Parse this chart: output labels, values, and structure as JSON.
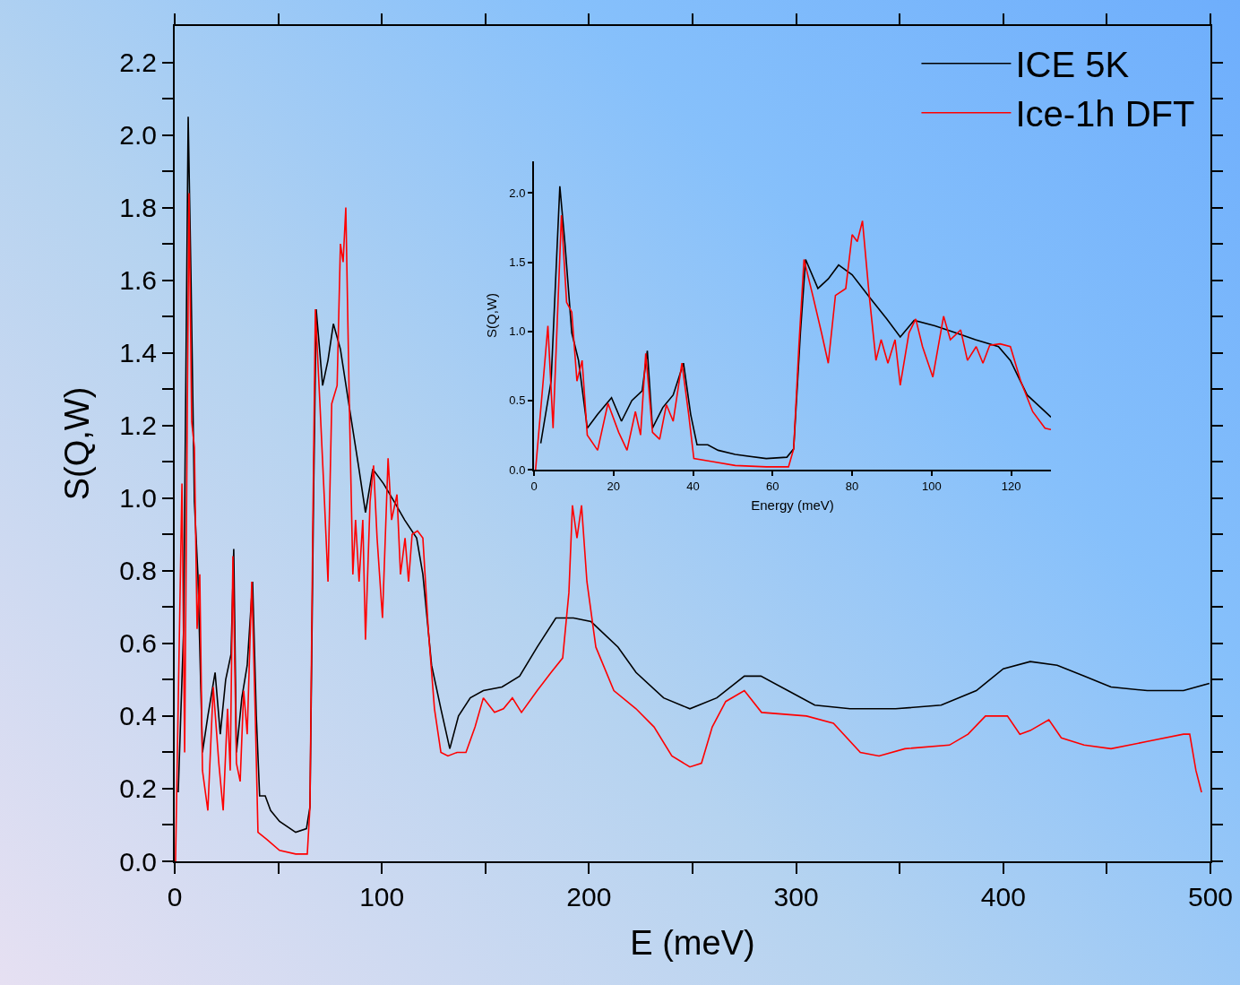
{
  "chart_data": [
    {
      "type": "line",
      "xlabel": "E (meV)",
      "ylabel": "S(Q,W)",
      "xlim": [
        0,
        500
      ],
      "ylim": [
        0,
        2.3
      ],
      "xticks": [
        0,
        {
          "value": 50,
          "label": null
        },
        100,
        {
          "value": 150,
          "label": null
        },
        200,
        {
          "value": 250,
          "label": null
        },
        300,
        {
          "value": 350,
          "label": null
        },
        400,
        {
          "value": 450,
          "label": null
        },
        500
      ],
      "yticks": [
        {
          "value": 0,
          "label": "0.0"
        },
        {
          "value": 0.1,
          "label": null
        },
        0.2,
        {
          "value": 0.3,
          "label": null
        },
        0.4,
        {
          "value": 0.5,
          "label": null
        },
        0.6,
        {
          "value": 0.7,
          "label": null
        },
        0.8,
        {
          "value": 0.9,
          "label": null
        },
        {
          "value": 1,
          "label": "1.0"
        },
        {
          "value": 1.1,
          "label": null
        },
        1.2,
        {
          "value": 1.3,
          "label": null
        },
        1.4,
        {
          "value": 1.5,
          "label": null
        },
        1.6,
        {
          "value": 1.7,
          "label": null
        },
        1.8,
        {
          "value": 1.9,
          "label": null
        },
        {
          "value": 2,
          "label": "2.0"
        },
        {
          "value": 2.1,
          "label": null
        },
        2.2
      ],
      "grid": false,
      "legend": "top right",
      "marker": "none",
      "line_style": "solid",
      "series": [
        {
          "name": "ICE 5K",
          "color": "#000000",
          "x": [
            1.7,
            4.3,
            6.5,
            7.8,
            9.5,
            11.2,
            13.4,
            16,
            19.5,
            22,
            24.6,
            27.2,
            28.5,
            29.8,
            32.4,
            35,
            37.6,
            39.4,
            41,
            43.7,
            46.3,
            50.6,
            58.4,
            63.6,
            65.3,
            67,
            68.3,
            71.4,
            74,
            76.6,
            80,
            84.3,
            88.7,
            92.1,
            95.6,
            100.8,
            106,
            111,
            116.8,
            119.8,
            124,
            128.5,
            132.8,
            137,
            142.7,
            149,
            158,
            166.5,
            175,
            184,
            192.5,
            201,
            214,
            222.7,
            236,
            248.7,
            261.7,
            275,
            283,
            296,
            309,
            326,
            348,
            370,
            387,
            400,
            413,
            426,
            439,
            452,
            469.5,
            487,
            499.5
          ],
          "values": [
            0.19,
            0.64,
            2.05,
            1.63,
            0.99,
            0.79,
            0.3,
            0.4,
            0.52,
            0.35,
            0.5,
            0.57,
            0.86,
            0.3,
            0.45,
            0.54,
            0.77,
            0.4,
            0.18,
            0.18,
            0.14,
            0.11,
            0.08,
            0.09,
            0.15,
            0.99,
            1.52,
            1.31,
            1.38,
            1.48,
            1.41,
            1.25,
            1.09,
            0.96,
            1.08,
            1.04,
            0.99,
            0.94,
            0.89,
            0.79,
            0.54,
            0.42,
            0.31,
            0.4,
            0.45,
            0.47,
            0.48,
            0.51,
            0.59,
            0.67,
            0.67,
            0.66,
            0.59,
            0.52,
            0.45,
            0.42,
            0.45,
            0.51,
            0.51,
            0.47,
            0.43,
            0.42,
            0.42,
            0.43,
            0.47,
            0.53,
            0.55,
            0.54,
            0.51,
            0.48,
            0.47,
            0.47,
            0.49
          ]
        },
        {
          "name": "Ice-1h DFT",
          "color": "#ff0000",
          "x": [
            0.4,
            3.5,
            4.8,
            6.9,
            8.2,
            9.5,
            10.8,
            12.1,
            13.4,
            16,
            18.6,
            21.3,
            23.4,
            25.5,
            26.8,
            28.1,
            29.8,
            31.6,
            33.3,
            35,
            37.2,
            38.9,
            40.2,
            44.5,
            50.6,
            58.4,
            64,
            65.3,
            66.6,
            67.9,
            70.1,
            72.3,
            74,
            75.8,
            78.4,
            80,
            81.3,
            82.6,
            84.3,
            86,
            87.3,
            89,
            90.8,
            92.1,
            94.3,
            96,
            97.7,
            100.3,
            103,
            104.7,
            107.3,
            109,
            111.2,
            112.9,
            114.6,
            117.2,
            119.8,
            122.4,
            125.4,
            128.5,
            131.9,
            136.3,
            140.6,
            145,
            149,
            154.4,
            158.7,
            163,
            167.4,
            175,
            181.7,
            187.3,
            190.3,
            192,
            194.2,
            196.4,
            199,
            203.3,
            212,
            222.7,
            231.4,
            240,
            248.7,
            254.3,
            259.5,
            266,
            275,
            283.3,
            305,
            318,
            331,
            340,
            352.5,
            374,
            383,
            391.4,
            402,
            408,
            413,
            422,
            428,
            439,
            452,
            469.5,
            487,
            490,
            493,
            495.7
          ],
          "values": [
            0,
            1.04,
            0.3,
            1.84,
            1.21,
            1.14,
            0.64,
            0.79,
            0.25,
            0.14,
            0.48,
            0.27,
            0.14,
            0.42,
            0.25,
            0.84,
            0.27,
            0.22,
            0.47,
            0.35,
            0.77,
            0.4,
            0.08,
            0.06,
            0.03,
            0.02,
            0.02,
            0.15,
            0.89,
            1.52,
            1.26,
            0.99,
            0.77,
            1.26,
            1.31,
            1.7,
            1.65,
            1.8,
            1.26,
            0.79,
            0.94,
            0.77,
            0.94,
            0.61,
            0.99,
            1.09,
            0.89,
            0.67,
            1.11,
            0.94,
            1.01,
            0.79,
            0.89,
            0.77,
            0.9,
            0.91,
            0.89,
            0.64,
            0.42,
            0.3,
            0.29,
            0.3,
            0.3,
            0.37,
            0.45,
            0.41,
            0.42,
            0.45,
            0.41,
            0.47,
            0.52,
            0.56,
            0.74,
            0.98,
            0.89,
            0.98,
            0.77,
            0.59,
            0.47,
            0.42,
            0.37,
            0.29,
            0.26,
            0.27,
            0.37,
            0.44,
            0.47,
            0.41,
            0.4,
            0.38,
            0.3,
            0.29,
            0.31,
            0.32,
            0.35,
            0.4,
            0.4,
            0.35,
            0.36,
            0.39,
            0.34,
            0.32,
            0.31,
            0.33,
            0.35,
            0.35,
            0.25,
            0.19
          ]
        }
      ]
    },
    {
      "type": "line",
      "xlabel": "Energy (meV)",
      "ylabel": "S(Q,W)",
      "xlim": [
        0,
        130
      ],
      "ylim": [
        0,
        2.23
      ],
      "xticks": [
        0,
        20,
        40,
        60,
        80,
        100,
        120
      ],
      "yticks": [
        {
          "value": 0,
          "label": "0.0"
        },
        0.5,
        {
          "value": 1,
          "label": "1.0"
        },
        1.5,
        {
          "value": 2,
          "label": "2.0"
        }
      ],
      "grid": false,
      "legend": false,
      "marker": "none",
      "line_style": "solid",
      "series": [
        {
          "color": "#000000",
          "x": [
            1.7,
            4.3,
            6.5,
            7.8,
            9.5,
            11.2,
            13.4,
            16,
            19.5,
            22,
            24.6,
            27.2,
            28.5,
            29.8,
            32.4,
            35,
            37.6,
            39.4,
            41,
            43.7,
            46.3,
            50.6,
            58.4,
            63.6,
            65.3,
            67,
            68.3,
            71.4,
            74,
            76.6,
            80,
            84.3,
            88.7,
            92.1,
            95.6,
            100.8,
            106,
            111,
            116.8,
            119.8,
            124,
            128.5,
            130
          ],
          "values": [
            0.19,
            0.64,
            2.05,
            1.63,
            0.99,
            0.79,
            0.3,
            0.4,
            0.52,
            0.35,
            0.5,
            0.57,
            0.86,
            0.3,
            0.45,
            0.54,
            0.77,
            0.4,
            0.18,
            0.18,
            0.14,
            0.11,
            0.08,
            0.09,
            0.15,
            0.99,
            1.52,
            1.31,
            1.38,
            1.48,
            1.41,
            1.25,
            1.09,
            0.96,
            1.08,
            1.04,
            0.99,
            0.94,
            0.89,
            0.79,
            0.54,
            0.42,
            0.38
          ]
        },
        {
          "color": "#ff0000",
          "x": [
            0.4,
            3.5,
            4.8,
            6.9,
            8.2,
            9.5,
            10.8,
            12.1,
            13.4,
            16,
            18.6,
            21.3,
            23.4,
            25.5,
            26.8,
            28.1,
            29.8,
            31.6,
            33.3,
            35,
            37.2,
            38.9,
            40.2,
            44.5,
            50.6,
            58.4,
            64,
            65.3,
            66.6,
            67.9,
            70.1,
            72.3,
            74,
            75.8,
            78.4,
            80,
            81.3,
            82.6,
            84.3,
            86,
            87.3,
            89,
            90.8,
            92.1,
            94.3,
            96,
            97.7,
            100.3,
            103,
            104.7,
            107.3,
            109,
            111.2,
            112.9,
            114.6,
            117.2,
            119.8,
            122.4,
            125.4,
            128.5,
            130
          ],
          "values": [
            0,
            1.04,
            0.3,
            1.84,
            1.21,
            1.14,
            0.64,
            0.79,
            0.25,
            0.14,
            0.48,
            0.27,
            0.14,
            0.42,
            0.25,
            0.84,
            0.27,
            0.22,
            0.47,
            0.35,
            0.77,
            0.4,
            0.08,
            0.06,
            0.03,
            0.02,
            0.02,
            0.15,
            0.89,
            1.52,
            1.26,
            0.99,
            0.77,
            1.26,
            1.31,
            1.7,
            1.65,
            1.8,
            1.26,
            0.79,
            0.94,
            0.77,
            0.94,
            0.61,
            0.99,
            1.09,
            0.89,
            0.67,
            1.11,
            0.94,
            1.01,
            0.79,
            0.89,
            0.77,
            0.9,
            0.91,
            0.89,
            0.64,
            0.42,
            0.3,
            0.29
          ]
        }
      ]
    }
  ]
}
